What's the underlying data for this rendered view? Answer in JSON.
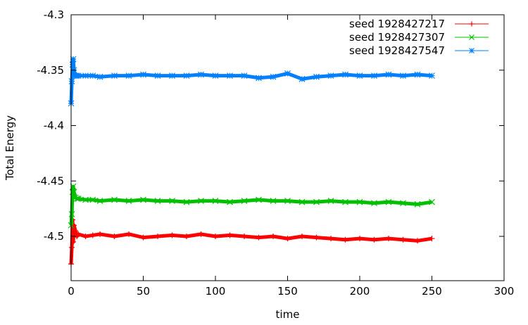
{
  "chart_data": {
    "type": "scatter",
    "title": "",
    "xlabel": "time",
    "ylabel": "Total Energy",
    "xlim": [
      0,
      300
    ],
    "ylim": [
      -4.54,
      -4.3
    ],
    "x_ticks": [
      0,
      50,
      100,
      150,
      200,
      250,
      300
    ],
    "y_ticks": [
      -4.3,
      -4.35,
      -4.4,
      -4.45,
      -4.5
    ],
    "x_tick_labels": [
      "0",
      "50",
      "100",
      "150",
      "200",
      "250",
      "300"
    ],
    "y_tick_labels": [
      "-4.3",
      "-4.35",
      "-4.4",
      "-4.45",
      "-4.5"
    ],
    "grid": false,
    "legend_position": "top-right",
    "series": [
      {
        "name": "seed 1928427217",
        "color": "#ff0000",
        "marker": "plus",
        "x": [
          0,
          0.5,
          1,
          1.5,
          2,
          3,
          4,
          5,
          10,
          15,
          20,
          30,
          40,
          50,
          60,
          70,
          80,
          90,
          100,
          110,
          120,
          130,
          140,
          150,
          160,
          170,
          180,
          190,
          200,
          210,
          220,
          230,
          240,
          250
        ],
        "y": [
          -4.525,
          -4.51,
          -4.485,
          -4.505,
          -4.49,
          -4.495,
          -4.5,
          -4.498,
          -4.5,
          -4.499,
          -4.498,
          -4.5,
          -4.498,
          -4.501,
          -4.5,
          -4.499,
          -4.5,
          -4.498,
          -4.5,
          -4.499,
          -4.5,
          -4.501,
          -4.5,
          -4.502,
          -4.5,
          -4.501,
          -4.502,
          -4.503,
          -4.502,
          -4.503,
          -4.502,
          -4.503,
          -4.504,
          -4.502
        ]
      },
      {
        "name": "seed 1928427307",
        "color": "#00c000",
        "marker": "cross",
        "x": [
          0,
          0.5,
          1,
          1.5,
          2,
          3,
          4,
          5,
          10,
          15,
          20,
          30,
          40,
          50,
          60,
          70,
          80,
          90,
          100,
          110,
          120,
          130,
          140,
          150,
          160,
          170,
          180,
          190,
          200,
          210,
          220,
          230,
          240,
          250
        ],
        "y": [
          -4.49,
          -4.48,
          -4.46,
          -4.455,
          -4.46,
          -4.465,
          -4.466,
          -4.466,
          -4.467,
          -4.467,
          -4.468,
          -4.467,
          -4.468,
          -4.467,
          -4.468,
          -4.468,
          -4.469,
          -4.468,
          -4.468,
          -4.469,
          -4.468,
          -4.467,
          -4.468,
          -4.468,
          -4.469,
          -4.469,
          -4.468,
          -4.469,
          -4.469,
          -4.47,
          -4.469,
          -4.47,
          -4.471,
          -4.469
        ]
      },
      {
        "name": "seed 1928427547",
        "color": "#0080ff",
        "marker": "star",
        "x": [
          0,
          0.5,
          1,
          1.5,
          2,
          3,
          4,
          5,
          10,
          15,
          20,
          30,
          40,
          50,
          60,
          70,
          80,
          90,
          100,
          110,
          120,
          130,
          140,
          150,
          160,
          170,
          180,
          190,
          200,
          210,
          220,
          230,
          240,
          250
        ],
        "y": [
          -4.38,
          -4.36,
          -4.345,
          -4.34,
          -4.35,
          -4.355,
          -4.355,
          -4.355,
          -4.355,
          -4.355,
          -4.356,
          -4.355,
          -4.355,
          -4.354,
          -4.355,
          -4.355,
          -4.355,
          -4.354,
          -4.355,
          -4.355,
          -4.355,
          -4.357,
          -4.356,
          -4.353,
          -4.358,
          -4.356,
          -4.355,
          -4.354,
          -4.355,
          -4.355,
          -4.354,
          -4.355,
          -4.354,
          -4.355
        ]
      }
    ]
  }
}
